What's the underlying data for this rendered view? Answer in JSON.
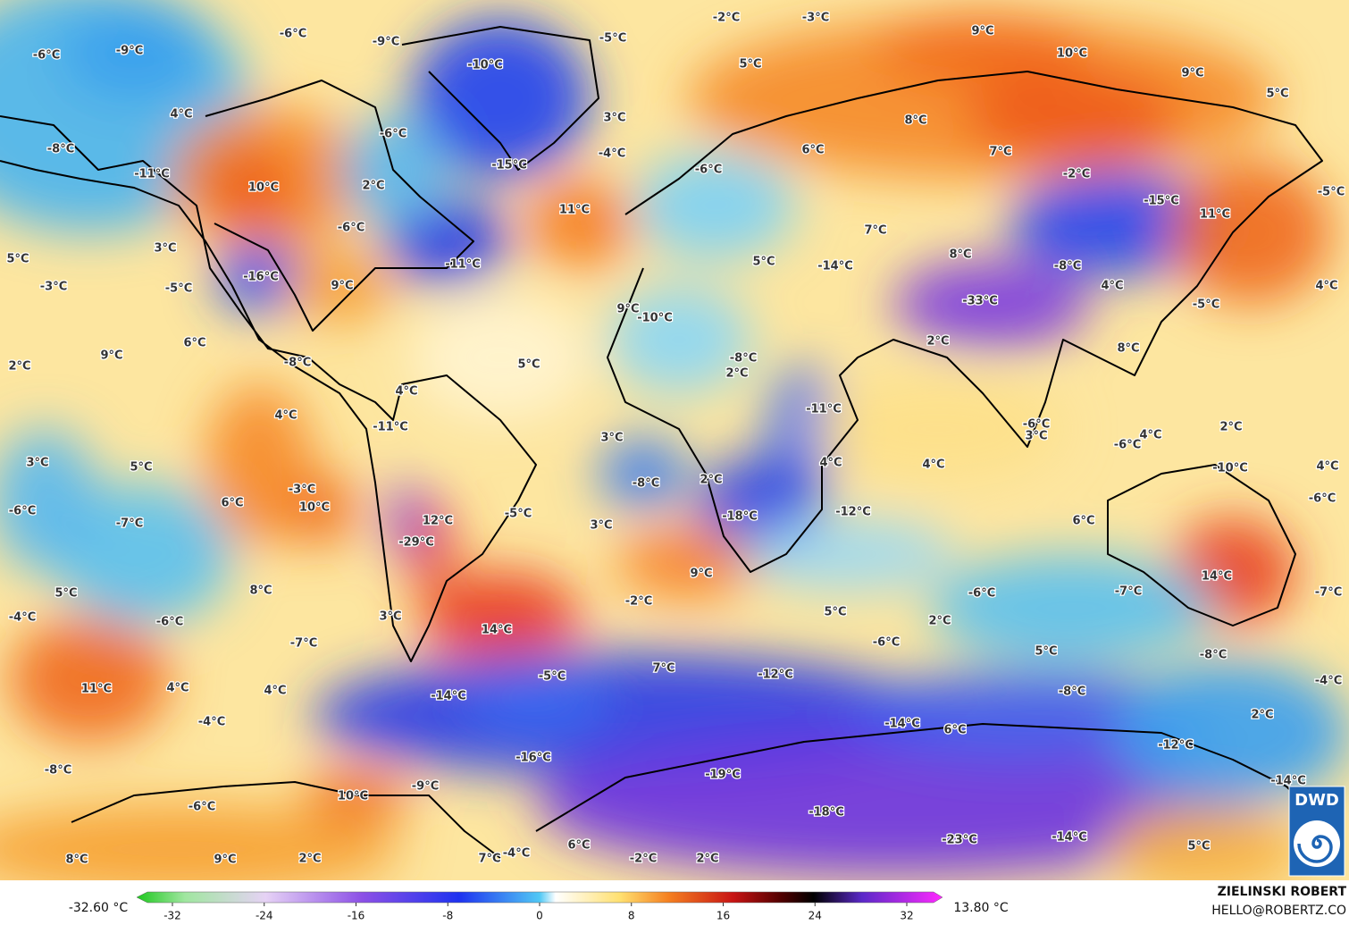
{
  "map": {
    "labels": [
      "-6°C",
      "-9°C",
      "-6°C",
      "-9°C",
      "-10°C",
      "-5°C",
      "-2°C",
      "-3°C",
      "9°C",
      "10°C",
      "9°C",
      "5°C",
      "5°C",
      "4°C",
      "-6°C",
      "3°C",
      "-8°C",
      "-11°C",
      "10°C",
      "-15°C",
      "-4°C",
      "-6°C",
      "6°C",
      "8°C",
      "7°C",
      "-2°C",
      "-15°C",
      "11°C",
      "-5°C",
      "2°C",
      "-6°C",
      "11°C",
      "3°C",
      "5°C",
      "-16°C",
      "-11°C",
      "7°C",
      "5°C",
      "-14°C",
      "8°C",
      "-8°C",
      "4°C",
      "4°C",
      "-3°C",
      "-5°C",
      "9°C",
      "9°C",
      "-10°C",
      "-33°C",
      "-5°C",
      "6°C",
      "9°C",
      "2°C",
      "-8°C",
      "5°C",
      "-8°C",
      "2°C",
      "2°C",
      "8°C",
      "4°C",
      "-11°C",
      "4°C",
      "-11°C",
      "-6°C",
      "3°C",
      "2°C",
      "-6°C",
      "4°C",
      "3°C",
      "3°C",
      "5°C",
      "4°C",
      "4°C",
      "4°C",
      "-10°C",
      "-3°C",
      "-8°C",
      "2°C",
      "6°C",
      "10°C",
      "-5°C",
      "-12°C",
      "-18°C",
      "-6°C",
      "-7°C",
      "12°C",
      "-6°C",
      "-29°C",
      "3°C",
      "6°C",
      "9°C",
      "14°C",
      "8°C",
      "5°C",
      "-2°C",
      "-6°C",
      "-7°C",
      "-7°C",
      "-4°C",
      "-6°C",
      "3°C",
      "14°C",
      "5°C",
      "2°C",
      "-7°C",
      "-6°C",
      "5°C",
      "-8°C",
      "7°C",
      "-12°C",
      "-5°C",
      "-14°C",
      "4°C",
      "11°C",
      "4°C",
      "-8°C",
      "-4°C",
      "-4°C",
      "2°C",
      "-14°C",
      "6°C",
      "-12°C",
      "-16°C",
      "-8°C",
      "-19°C",
      "-9°C",
      "-14°C",
      "10°C",
      "-6°C",
      "-18°C",
      "-23°C",
      "-14°C",
      "5°C",
      "6°C",
      "-4°C",
      "8°C",
      "9°C",
      "2°C",
      "7°C",
      "-2°C",
      "2°C"
    ]
  },
  "legend": {
    "min": "-32.60 °C",
    "max": "13.80 °C",
    "ticks": [
      -32,
      -24,
      -16,
      -8,
      0,
      8,
      16,
      24,
      32
    ]
  },
  "credit": {
    "author": "ZIELINSKI ROBERT",
    "email": "HELLO@ROBERTZ.CO"
  },
  "logo": {
    "text": "DWD"
  }
}
